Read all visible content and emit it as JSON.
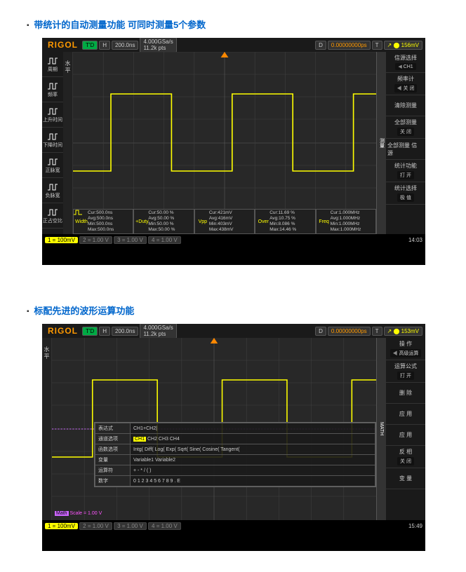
{
  "section1": {
    "title": "带统计的自动测量功能  可同时测量5个参数"
  },
  "section2": {
    "title": "标配先进的波形运算功能"
  },
  "scope_common": {
    "brand": "RIGOL",
    "td": "T'D",
    "timebase_label": "H",
    "timebase": "200.0ns",
    "samplerate": "4.000GSa/s",
    "pts": "11.2k pts",
    "delay_label": "D",
    "delay": "0.00000000ps",
    "trig_label": "T",
    "bottom_channels": [
      {
        "n": "1",
        "v": "= 100mV",
        "cls": "ch1"
      },
      {
        "n": "2",
        "v": "= 1.00 V",
        "cls": "ch234"
      },
      {
        "n": "3",
        "v": "= 1.00 V",
        "cls": "ch234"
      },
      {
        "n": "4",
        "v": "= 1.00 V",
        "cls": "ch234"
      }
    ]
  },
  "scope1": {
    "trig_level": "156mV",
    "clock": "14:03",
    "vert_label": "水平",
    "vert_tab": "测量",
    "left_icons": [
      {
        "name": "period-icon",
        "label": "周期"
      },
      {
        "name": "freq-icon",
        "label": "频率"
      },
      {
        "name": "rise-icon",
        "label": "上升时间"
      },
      {
        "name": "fall-icon",
        "label": "下降时间"
      },
      {
        "name": "pos-width-icon",
        "label": "正脉宽"
      },
      {
        "name": "neg-width-icon",
        "label": "负脉宽"
      },
      {
        "name": "duty-icon",
        "label": "正占空比"
      }
    ],
    "right_menu": [
      {
        "label": "信源选择",
        "sub": "CH1",
        "arrow": true
      },
      {
        "label": "频率计",
        "sub": "关 闭",
        "arrow": true
      },
      {
        "label": "清除测量",
        "sub": ""
      },
      {
        "label": "全部测量",
        "sub": "关 闭"
      },
      {
        "label": "全部测量\n信 源",
        "sub": ""
      },
      {
        "label": "统计功能",
        "sub": "打 开"
      },
      {
        "label": "统计选择",
        "sub": "极 值"
      }
    ],
    "stats": [
      {
        "name": "Width",
        "lines": [
          "Cur:500.0ns",
          "Avg:500.0ns",
          "Min:500.0ns",
          "Max:500.0ns"
        ]
      },
      {
        "name": "+Duty",
        "lines": [
          "Cur:50.00 %",
          "Avg:50.00 %",
          "Min:50.00 %",
          "Max:50.00 %"
        ]
      },
      {
        "name": "Vpp",
        "lines": [
          "Cur:421mV",
          "Avg:416mV",
          "Min:403mV",
          "Max:438mV"
        ]
      },
      {
        "name": "Over",
        "lines": [
          "Cur:11.69 %",
          "Avg:10.75 %",
          "Min:8.086 %",
          "Max:14.46 %"
        ]
      },
      {
        "name": "Freq",
        "lines": [
          "Cur:1.000MHz",
          "Avg:1.000MHz",
          "Min:1.000MHz",
          "Max:1.000MHz"
        ]
      }
    ],
    "colors": {
      "trace": "#ffff00",
      "grid": "#404040",
      "bg": "#282828",
      "marker": "#ff8800"
    }
  },
  "scope2": {
    "trig_level": "153mV",
    "clock": "15:49",
    "vert_label": "水平",
    "vert_tab": "MATH",
    "left_icons": [],
    "right_menu": [
      {
        "label": "操 作",
        "sub": "高级运算",
        "arrow": true
      },
      {
        "label": "运算公式",
        "sub": "打 开"
      },
      {
        "label": "删 除",
        "sub": ""
      },
      {
        "label": "应 用",
        "sub": ""
      },
      {
        "label": "应 用",
        "sub": ""
      },
      {
        "label": "反 相",
        "sub": "关 闭"
      },
      {
        "label": "变 量",
        "sub": ""
      }
    ],
    "editor": {
      "rows": [
        {
          "k": "表达式",
          "v": "CH1+CH2|"
        },
        {
          "k": "通道选项",
          "v_hl": "CH1",
          "v_rest": " CH2 CH3 CH4"
        },
        {
          "k": "函数选项",
          "v": "Intg(  Diff(  Log(  Exp(  Sqrt(  Sine(  Cosine(  Tangent("
        },
        {
          "k": "变量",
          "v": "Variable1  Variable2"
        },
        {
          "k": "运算符",
          "v": "+  -  *  /  (  )"
        },
        {
          "k": "数字",
          "v": "0  1  2  3  4  5  6  7  8  9  .  E"
        }
      ]
    },
    "math_trace": {
      "label": "Math",
      "scale": "Scale = 1.00 V",
      "color": "#cc66ff"
    },
    "colors": {
      "trace": "#ffff00",
      "grid": "#404040",
      "bg": "#282828",
      "marker": "#ff8800"
    }
  }
}
